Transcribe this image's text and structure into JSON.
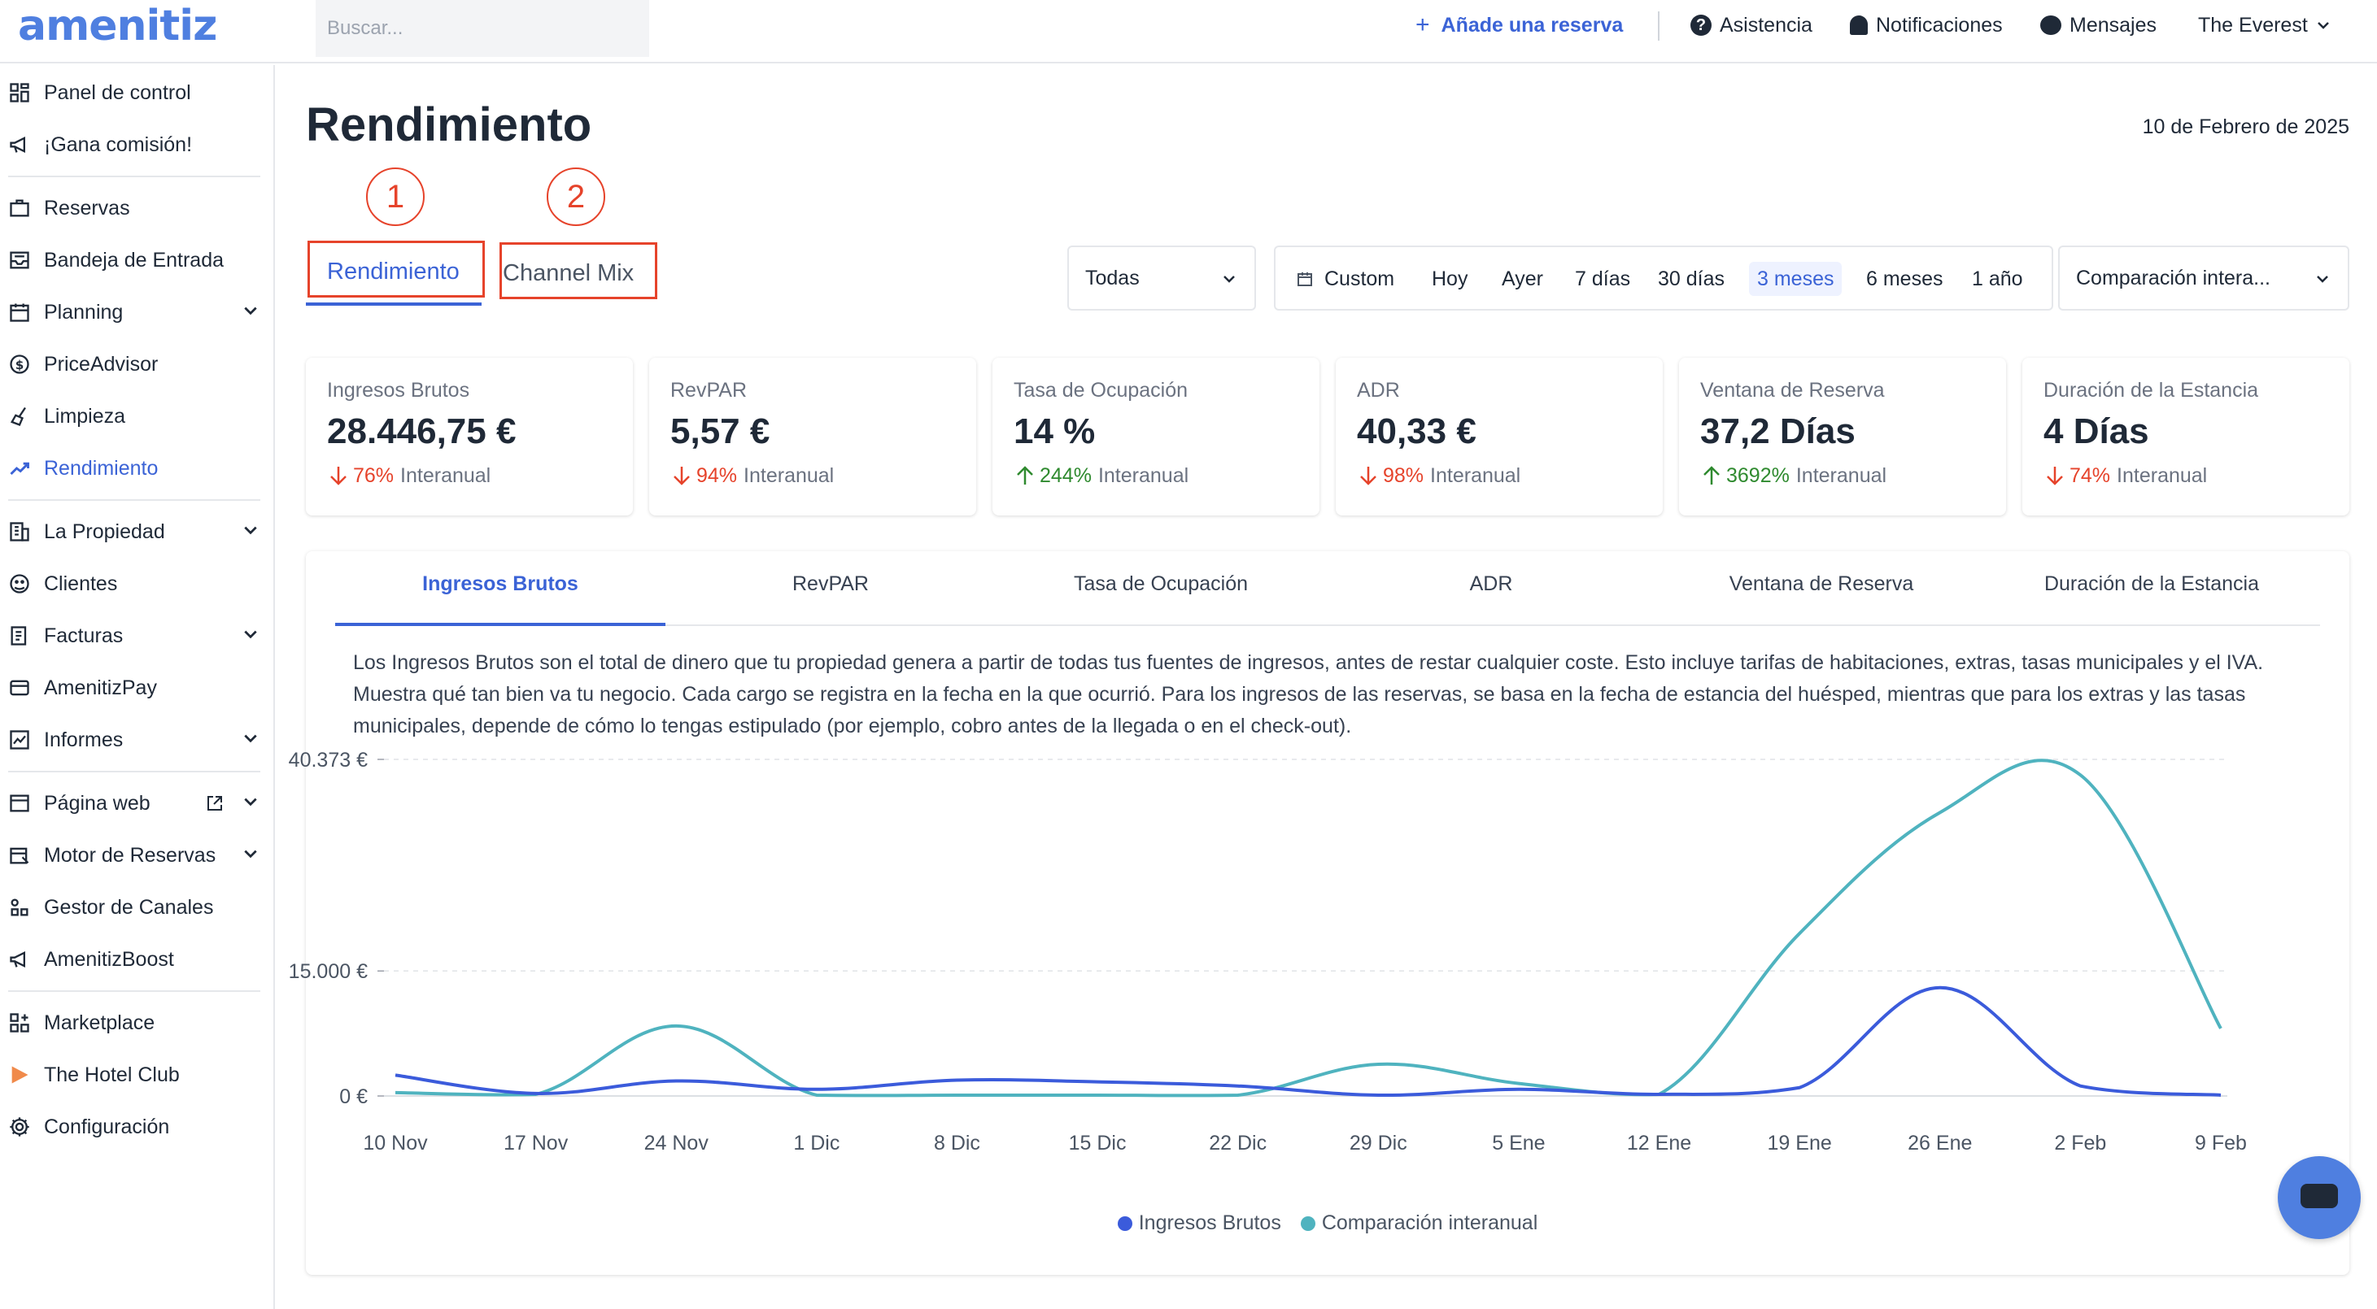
{
  "topbar": {
    "logo": "amenitiz",
    "search_placeholder": "Buscar...",
    "add_reservation": "Añade una reserva",
    "help": "Asistencia",
    "notifications": "Notificaciones",
    "messages": "Mensajes",
    "property": "The Everest"
  },
  "sidebar": {
    "items": [
      {
        "label": "Panel de control",
        "icon": "dashboard-icon"
      },
      {
        "label": "¡Gana comisión!",
        "icon": "megaphone-icon"
      },
      {
        "label": "Reservas",
        "icon": "briefcase-icon"
      },
      {
        "label": "Bandeja de Entrada",
        "icon": "inbox-icon"
      },
      {
        "label": "Planning",
        "icon": "calendar-icon"
      },
      {
        "label": "PriceAdvisor",
        "icon": "dollar-icon"
      },
      {
        "label": "Limpieza",
        "icon": "broom-icon"
      },
      {
        "label": "Rendimiento",
        "icon": "trend-icon"
      },
      {
        "label": "La Propiedad",
        "icon": "building-icon"
      },
      {
        "label": "Clientes",
        "icon": "users-icon"
      },
      {
        "label": "Facturas",
        "icon": "invoice-icon"
      },
      {
        "label": "AmenitizPay",
        "icon": "card-icon"
      },
      {
        "label": "Informes",
        "icon": "report-icon"
      },
      {
        "label": "Página web",
        "icon": "browser-icon"
      },
      {
        "label": "Motor de Reservas",
        "icon": "booking-engine-icon"
      },
      {
        "label": "Gestor de Canales",
        "icon": "channels-icon"
      },
      {
        "label": "AmenitizBoost",
        "icon": "boost-icon"
      },
      {
        "label": "Marketplace",
        "icon": "marketplace-icon"
      },
      {
        "label": "The Hotel Club",
        "icon": "play-icon"
      },
      {
        "label": "Configuración",
        "icon": "gear-icon"
      }
    ]
  },
  "header": {
    "title": "Rendimiento",
    "date": "10 de Febrero de 2025"
  },
  "annotations": [
    "1",
    "2"
  ],
  "tabs": [
    "Rendimiento",
    "Channel Mix"
  ],
  "filters": {
    "channel": "Todas",
    "ranges": [
      "Custom",
      "Hoy",
      "Ayer",
      "7 días",
      "30 días",
      "3 meses",
      "6 meses",
      "1 año"
    ],
    "selected_range": "3 meses",
    "comparison": "Comparación intera..."
  },
  "kpis": [
    {
      "title": "Ingresos Brutos",
      "value": "28.446,75 €",
      "delta": "76%",
      "direction": "down",
      "suffix": "Interanual"
    },
    {
      "title": "RevPAR",
      "value": "5,57 €",
      "delta": "94%",
      "direction": "down",
      "suffix": "Interanual"
    },
    {
      "title": "Tasa de Ocupación",
      "value": "14 %",
      "delta": "244%",
      "direction": "up",
      "suffix": "Interanual"
    },
    {
      "title": "ADR",
      "value": "40,33 €",
      "delta": "98%",
      "direction": "down",
      "suffix": "Interanual"
    },
    {
      "title": "Ventana de Reserva",
      "value": "37,2 Días",
      "delta": "3692%",
      "direction": "up",
      "suffix": "Interanual"
    },
    {
      "title": "Duración de la Estancia",
      "value": "4 Días",
      "delta": "74%",
      "direction": "down",
      "suffix": "Interanual"
    }
  ],
  "metric_tabs": [
    "Ingresos Brutos",
    "RevPAR",
    "Tasa de Ocupación",
    "ADR",
    "Ventana de Reserva",
    "Duración de la Estancia"
  ],
  "description": "Los Ingresos Brutos son el total de dinero que tu propiedad genera a partir de todas tus fuentes de ingresos, antes de restar cualquier coste. Esto incluye tarifas de habitaciones, extras, tasas municipales y el IVA. Muestra qué tan bien va tu negocio. Cada cargo se registra en la fecha en la que ocurrió. Para los ingresos de las reservas, se basa en la fecha de estancia del huésped, mientras que para los extras y las tasas municipales, depende de cómo lo tengas estipulado (por ejemplo, cobro antes de la llegada o en el check-out).",
  "colors": {
    "accent": "#3b63d6",
    "series_primary": "#3b5bdb",
    "series_comparison": "#4fb3bf",
    "down": "#e6432b",
    "up": "#2f8a2f",
    "annotation": "#e6432b"
  },
  "chart_data": {
    "type": "line",
    "x": [
      "10 Nov",
      "17 Nov",
      "24 Nov",
      "1 Dic",
      "8 Dic",
      "15 Dic",
      "22 Dic",
      "29 Dic",
      "5 Ene",
      "12 Ene",
      "19 Ene",
      "26 Ene",
      "2 Feb",
      "9 Feb"
    ],
    "y_ticks": [
      "0 €",
      "15.000 €",
      "40.373 €"
    ],
    "y_tick_values": [
      0,
      15000,
      40373
    ],
    "ylim": [
      0,
      40373
    ],
    "series": [
      {
        "name": "Ingresos Brutos",
        "values": [
          2500,
          300,
          1800,
          800,
          1900,
          1700,
          1200,
          100,
          800,
          200,
          1000,
          13000,
          1200,
          100
        ]
      },
      {
        "name": "Comparación interanual",
        "values": [
          400,
          200,
          8400,
          100,
          100,
          100,
          100,
          3800,
          1500,
          200,
          19500,
          34000,
          38500,
          8100
        ]
      }
    ],
    "legend_position": "bottom",
    "grid": "horizontal-dashed"
  }
}
